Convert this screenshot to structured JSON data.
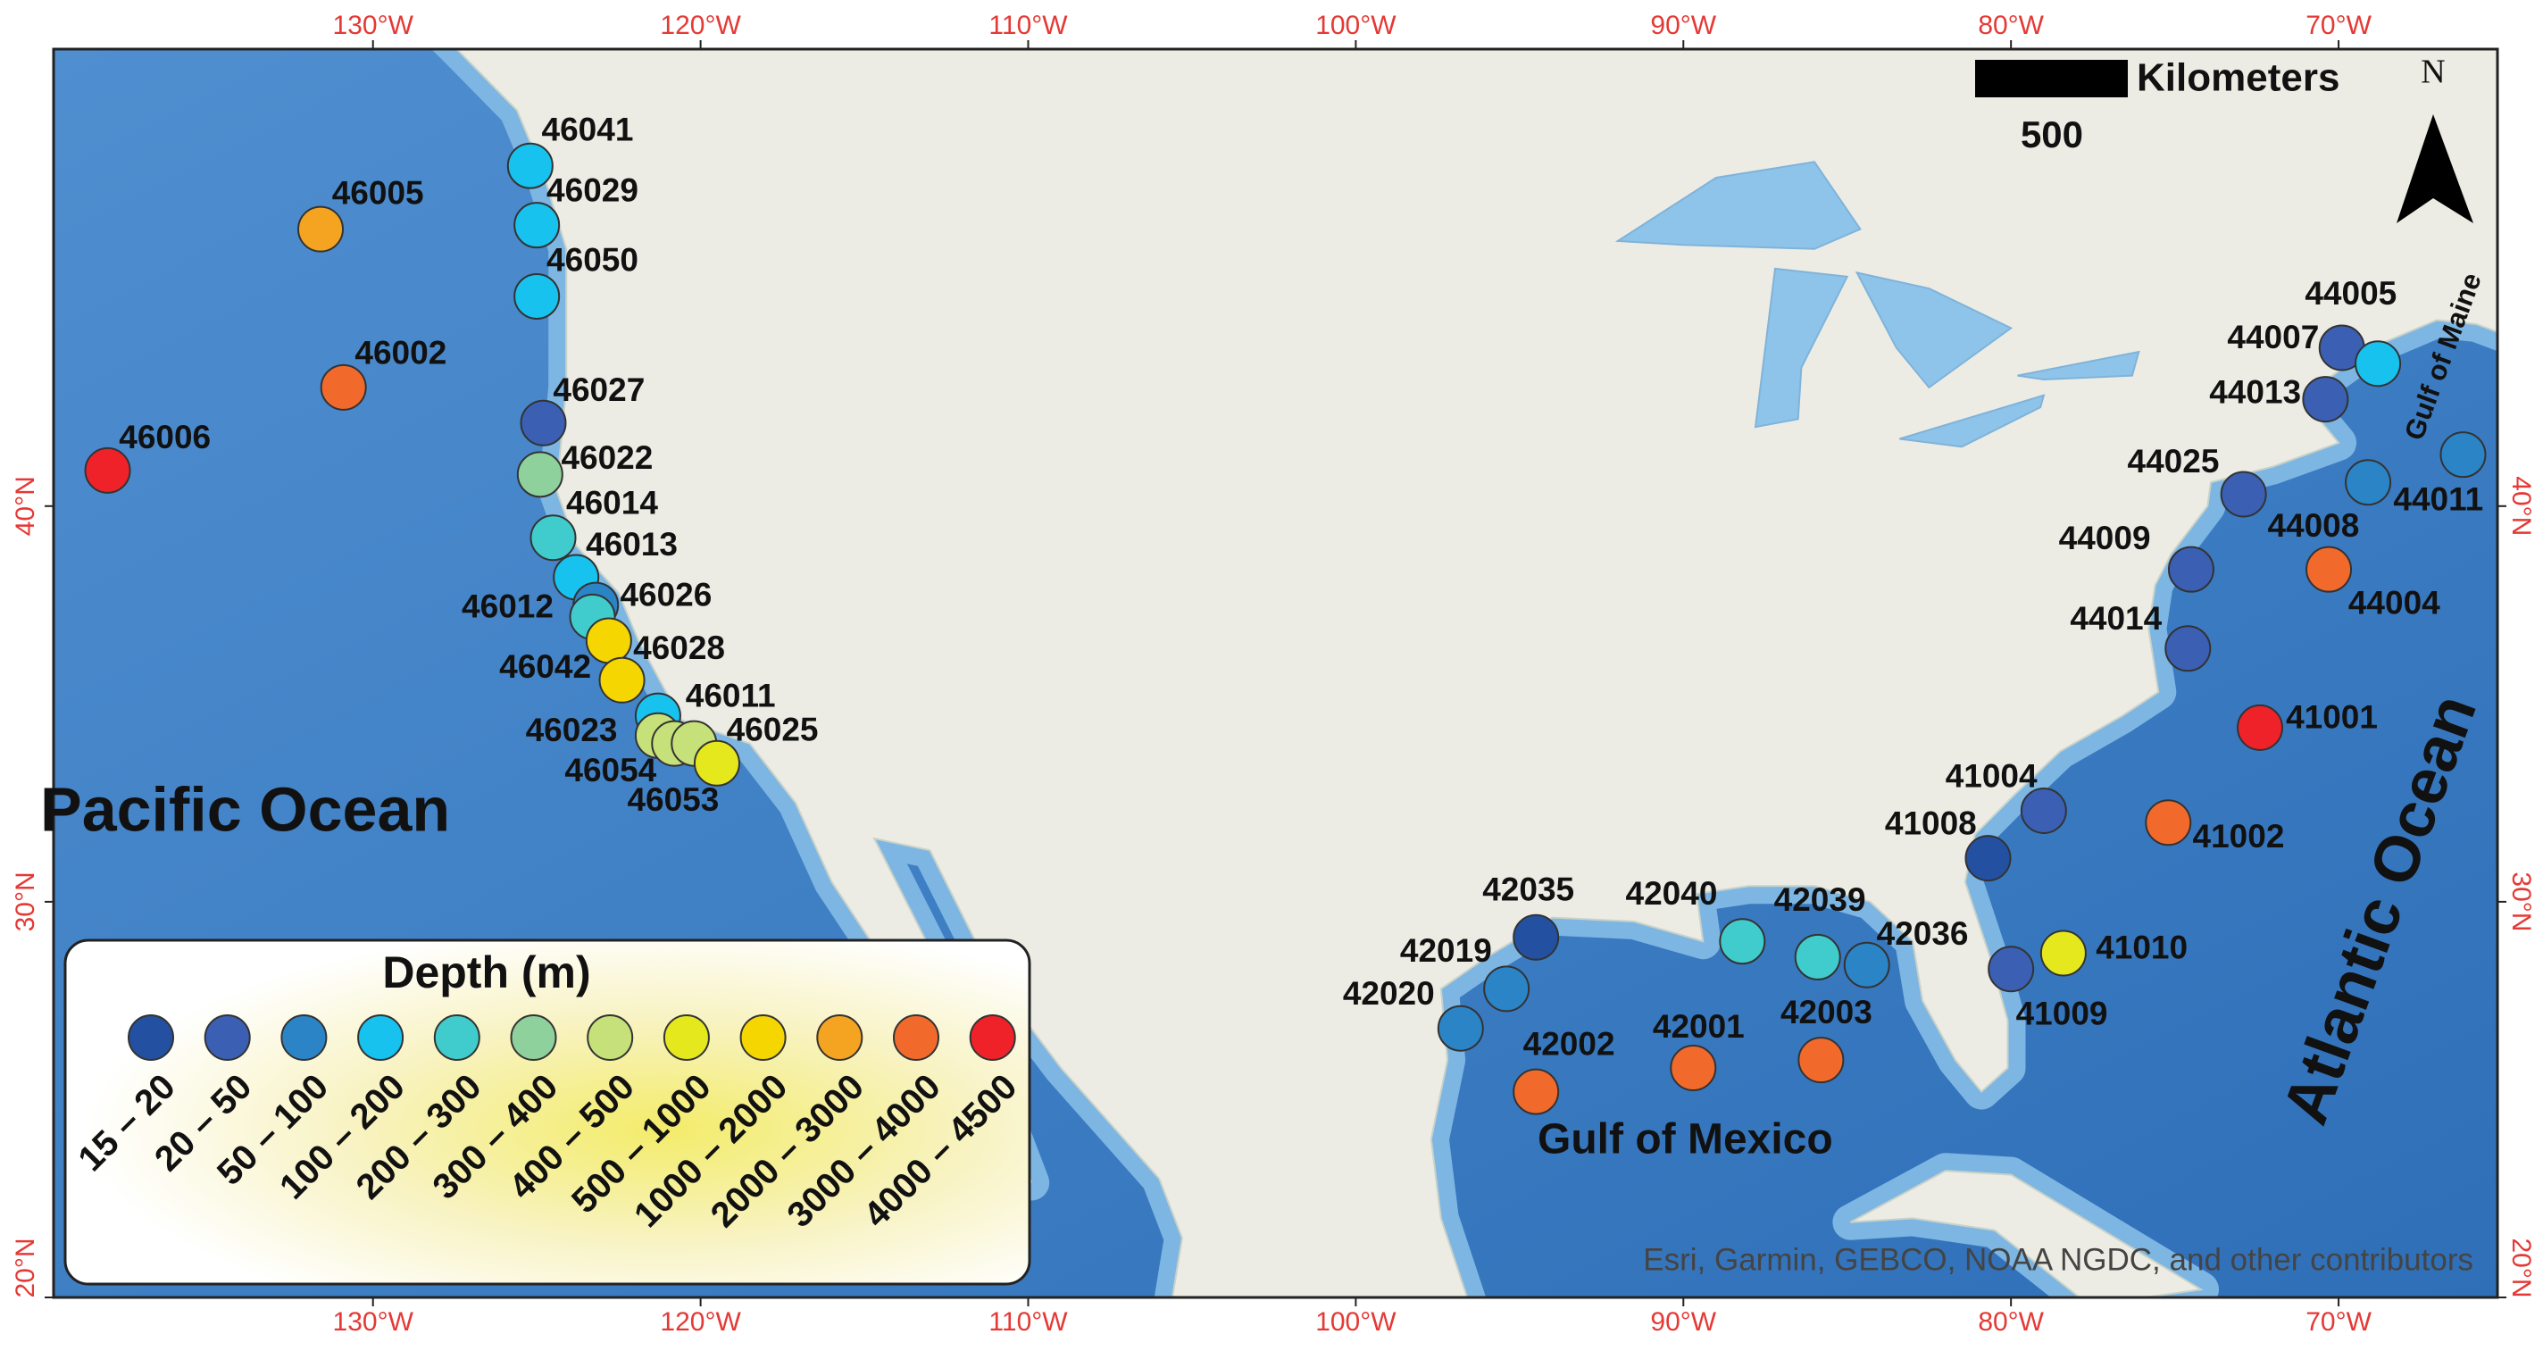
{
  "map": {
    "xlim": [
      -139.75,
      -65.15
    ],
    "ylim": [
      20,
      51.55
    ],
    "xticks": [
      {
        "value": -130,
        "label": "130°W"
      },
      {
        "value": -120,
        "label": "120°W"
      },
      {
        "value": -110,
        "label": "110°W"
      },
      {
        "value": -100,
        "label": "100°W"
      },
      {
        "value": -90,
        "label": "90°W"
      },
      {
        "value": -80,
        "label": "80°W"
      },
      {
        "value": -70,
        "label": "70°W"
      }
    ],
    "yticks": [
      {
        "value": 20,
        "label": "20°N"
      },
      {
        "value": 30,
        "label": "30°N"
      },
      {
        "value": 40,
        "label": "40°N"
      }
    ],
    "places": {
      "pacific": "Pacific Ocean",
      "gulf_mexico": "Gulf of Mexico",
      "atlantic": "Atlantic Ocean",
      "gulf_maine": "Gulf of Maine"
    },
    "scale": {
      "unit": "Kilometers",
      "length": "500"
    },
    "north": "N",
    "attribution": "Esri, Garmin, GEBCO, NOAA NGDC, and other contributors",
    "legend": {
      "title": "Depth (m)",
      "classes": [
        {
          "label": "15 – 20",
          "color": "#2350a0"
        },
        {
          "label": "20 – 50",
          "color": "#3a5fb3"
        },
        {
          "label": "50 – 100",
          "color": "#2a84c6"
        },
        {
          "label": "100 – 200",
          "color": "#17c2ee"
        },
        {
          "label": "200 – 300",
          "color": "#40cccc"
        },
        {
          "label": "300 – 400",
          "color": "#8fd19c"
        },
        {
          "label": "400 – 500",
          "color": "#c6e07a"
        },
        {
          "label": "500 – 1000",
          "color": "#e6e81e"
        },
        {
          "label": "1000 – 2000",
          "color": "#f6d600"
        },
        {
          "label": "2000 – 3000",
          "color": "#f5a421"
        },
        {
          "label": "3000 – 4000",
          "color": "#f26a2b"
        },
        {
          "label": "4000 – 4500",
          "color": "#ef2229"
        }
      ]
    },
    "stations": [
      {
        "id": "46041",
        "lon": -125.2,
        "lat": 48.6,
        "color": "#17c2ee"
      },
      {
        "id": "46029",
        "lon": -125.0,
        "lat": 47.1,
        "color": "#17c2ee"
      },
      {
        "id": "46050",
        "lon": -125.0,
        "lat": 45.3,
        "color": "#17c2ee"
      },
      {
        "id": "46005",
        "lon": -131.6,
        "lat": 47.0,
        "color": "#f5a421"
      },
      {
        "id": "46002",
        "lon": -130.9,
        "lat": 43.0,
        "color": "#f26a2b"
      },
      {
        "id": "46006",
        "lon": -138.1,
        "lat": 40.9,
        "color": "#ef2229"
      },
      {
        "id": "46027",
        "lon": -124.8,
        "lat": 42.1,
        "color": "#3a5fb3"
      },
      {
        "id": "46022",
        "lon": -124.9,
        "lat": 40.8,
        "color": "#8fd19c"
      },
      {
        "id": "46014",
        "lon": -124.5,
        "lat": 39.2,
        "color": "#40cccc"
      },
      {
        "id": "46013",
        "lon": -123.8,
        "lat": 38.2,
        "color": "#17c2ee"
      },
      {
        "id": "46026",
        "lon": -123.2,
        "lat": 37.5,
        "color": "#2a84c6"
      },
      {
        "id": "46012",
        "lon": -123.3,
        "lat": 37.2,
        "color": "#40cccc"
      },
      {
        "id": "46028",
        "lon": -122.8,
        "lat": 36.6,
        "color": "#f6d600"
      },
      {
        "id": "46042",
        "lon": -122.4,
        "lat": 35.6,
        "color": "#f6d600"
      },
      {
        "id": "46011",
        "lon": -121.3,
        "lat": 34.7,
        "color": "#17c2ee"
      },
      {
        "id": "46023",
        "lon": -121.3,
        "lat": 34.2,
        "color": "#c6e07a"
      },
      {
        "id": "46054",
        "lon": -120.8,
        "lat": 34.0,
        "color": "#c6e07a"
      },
      {
        "id": "46025",
        "lon": -120.2,
        "lat": 34.0,
        "color": "#c6e07a"
      },
      {
        "id": "46053",
        "lon": -119.5,
        "lat": 33.5,
        "color": "#e6e81e"
      },
      {
        "id": "44007",
        "lon": -69.9,
        "lat": 44.0,
        "color": "#3a5fb3"
      },
      {
        "id": "44005",
        "lon": -68.8,
        "lat": 43.6,
        "color": "#17c2ee"
      },
      {
        "id": "44013",
        "lon": -70.4,
        "lat": 42.7,
        "color": "#3a5fb3"
      },
      {
        "id": "44011",
        "lon": -66.2,
        "lat": 41.3,
        "color": "#2a84c6"
      },
      {
        "id": "44025",
        "lon": -72.9,
        "lat": 40.3,
        "color": "#3a5fb3"
      },
      {
        "id": "44008",
        "lon": -69.1,
        "lat": 40.6,
        "color": "#2a84c6"
      },
      {
        "id": "44009",
        "lon": -74.5,
        "lat": 38.4,
        "color": "#3a5fb3"
      },
      {
        "id": "44004",
        "lon": -70.3,
        "lat": 38.4,
        "color": "#f26a2b"
      },
      {
        "id": "44014",
        "lon": -74.6,
        "lat": 36.4,
        "color": "#3a5fb3"
      },
      {
        "id": "41001",
        "lon": -72.4,
        "lat": 34.4,
        "color": "#ef2229"
      },
      {
        "id": "41004",
        "lon": -79.0,
        "lat": 32.3,
        "color": "#3a5fb3"
      },
      {
        "id": "41002",
        "lon": -75.2,
        "lat": 32.0,
        "color": "#f26a2b"
      },
      {
        "id": "41008",
        "lon": -80.7,
        "lat": 31.1,
        "color": "#2350a0"
      },
      {
        "id": "41009",
        "lon": -80.0,
        "lat": 28.3,
        "color": "#3a5fb3"
      },
      {
        "id": "41010",
        "lon": -78.4,
        "lat": 28.7,
        "color": "#e6e81e"
      },
      {
        "id": "42036",
        "lon": -84.4,
        "lat": 28.4,
        "color": "#2a84c6"
      },
      {
        "id": "42039",
        "lon": -85.9,
        "lat": 28.6,
        "color": "#40cccc"
      },
      {
        "id": "42040",
        "lon": -88.2,
        "lat": 29.0,
        "color": "#40cccc"
      },
      {
        "id": "42035",
        "lon": -94.5,
        "lat": 29.1,
        "color": "#2350a0"
      },
      {
        "id": "42019",
        "lon": -95.4,
        "lat": 27.8,
        "color": "#2a84c6"
      },
      {
        "id": "42020",
        "lon": -96.8,
        "lat": 26.8,
        "color": "#2a84c6"
      },
      {
        "id": "42002",
        "lon": -94.5,
        "lat": 25.2,
        "color": "#f26a2b"
      },
      {
        "id": "42001",
        "lon": -89.7,
        "lat": 25.8,
        "color": "#f26a2b"
      },
      {
        "id": "42003",
        "lon": -85.8,
        "lat": 26.0,
        "color": "#f26a2b"
      }
    ]
  }
}
